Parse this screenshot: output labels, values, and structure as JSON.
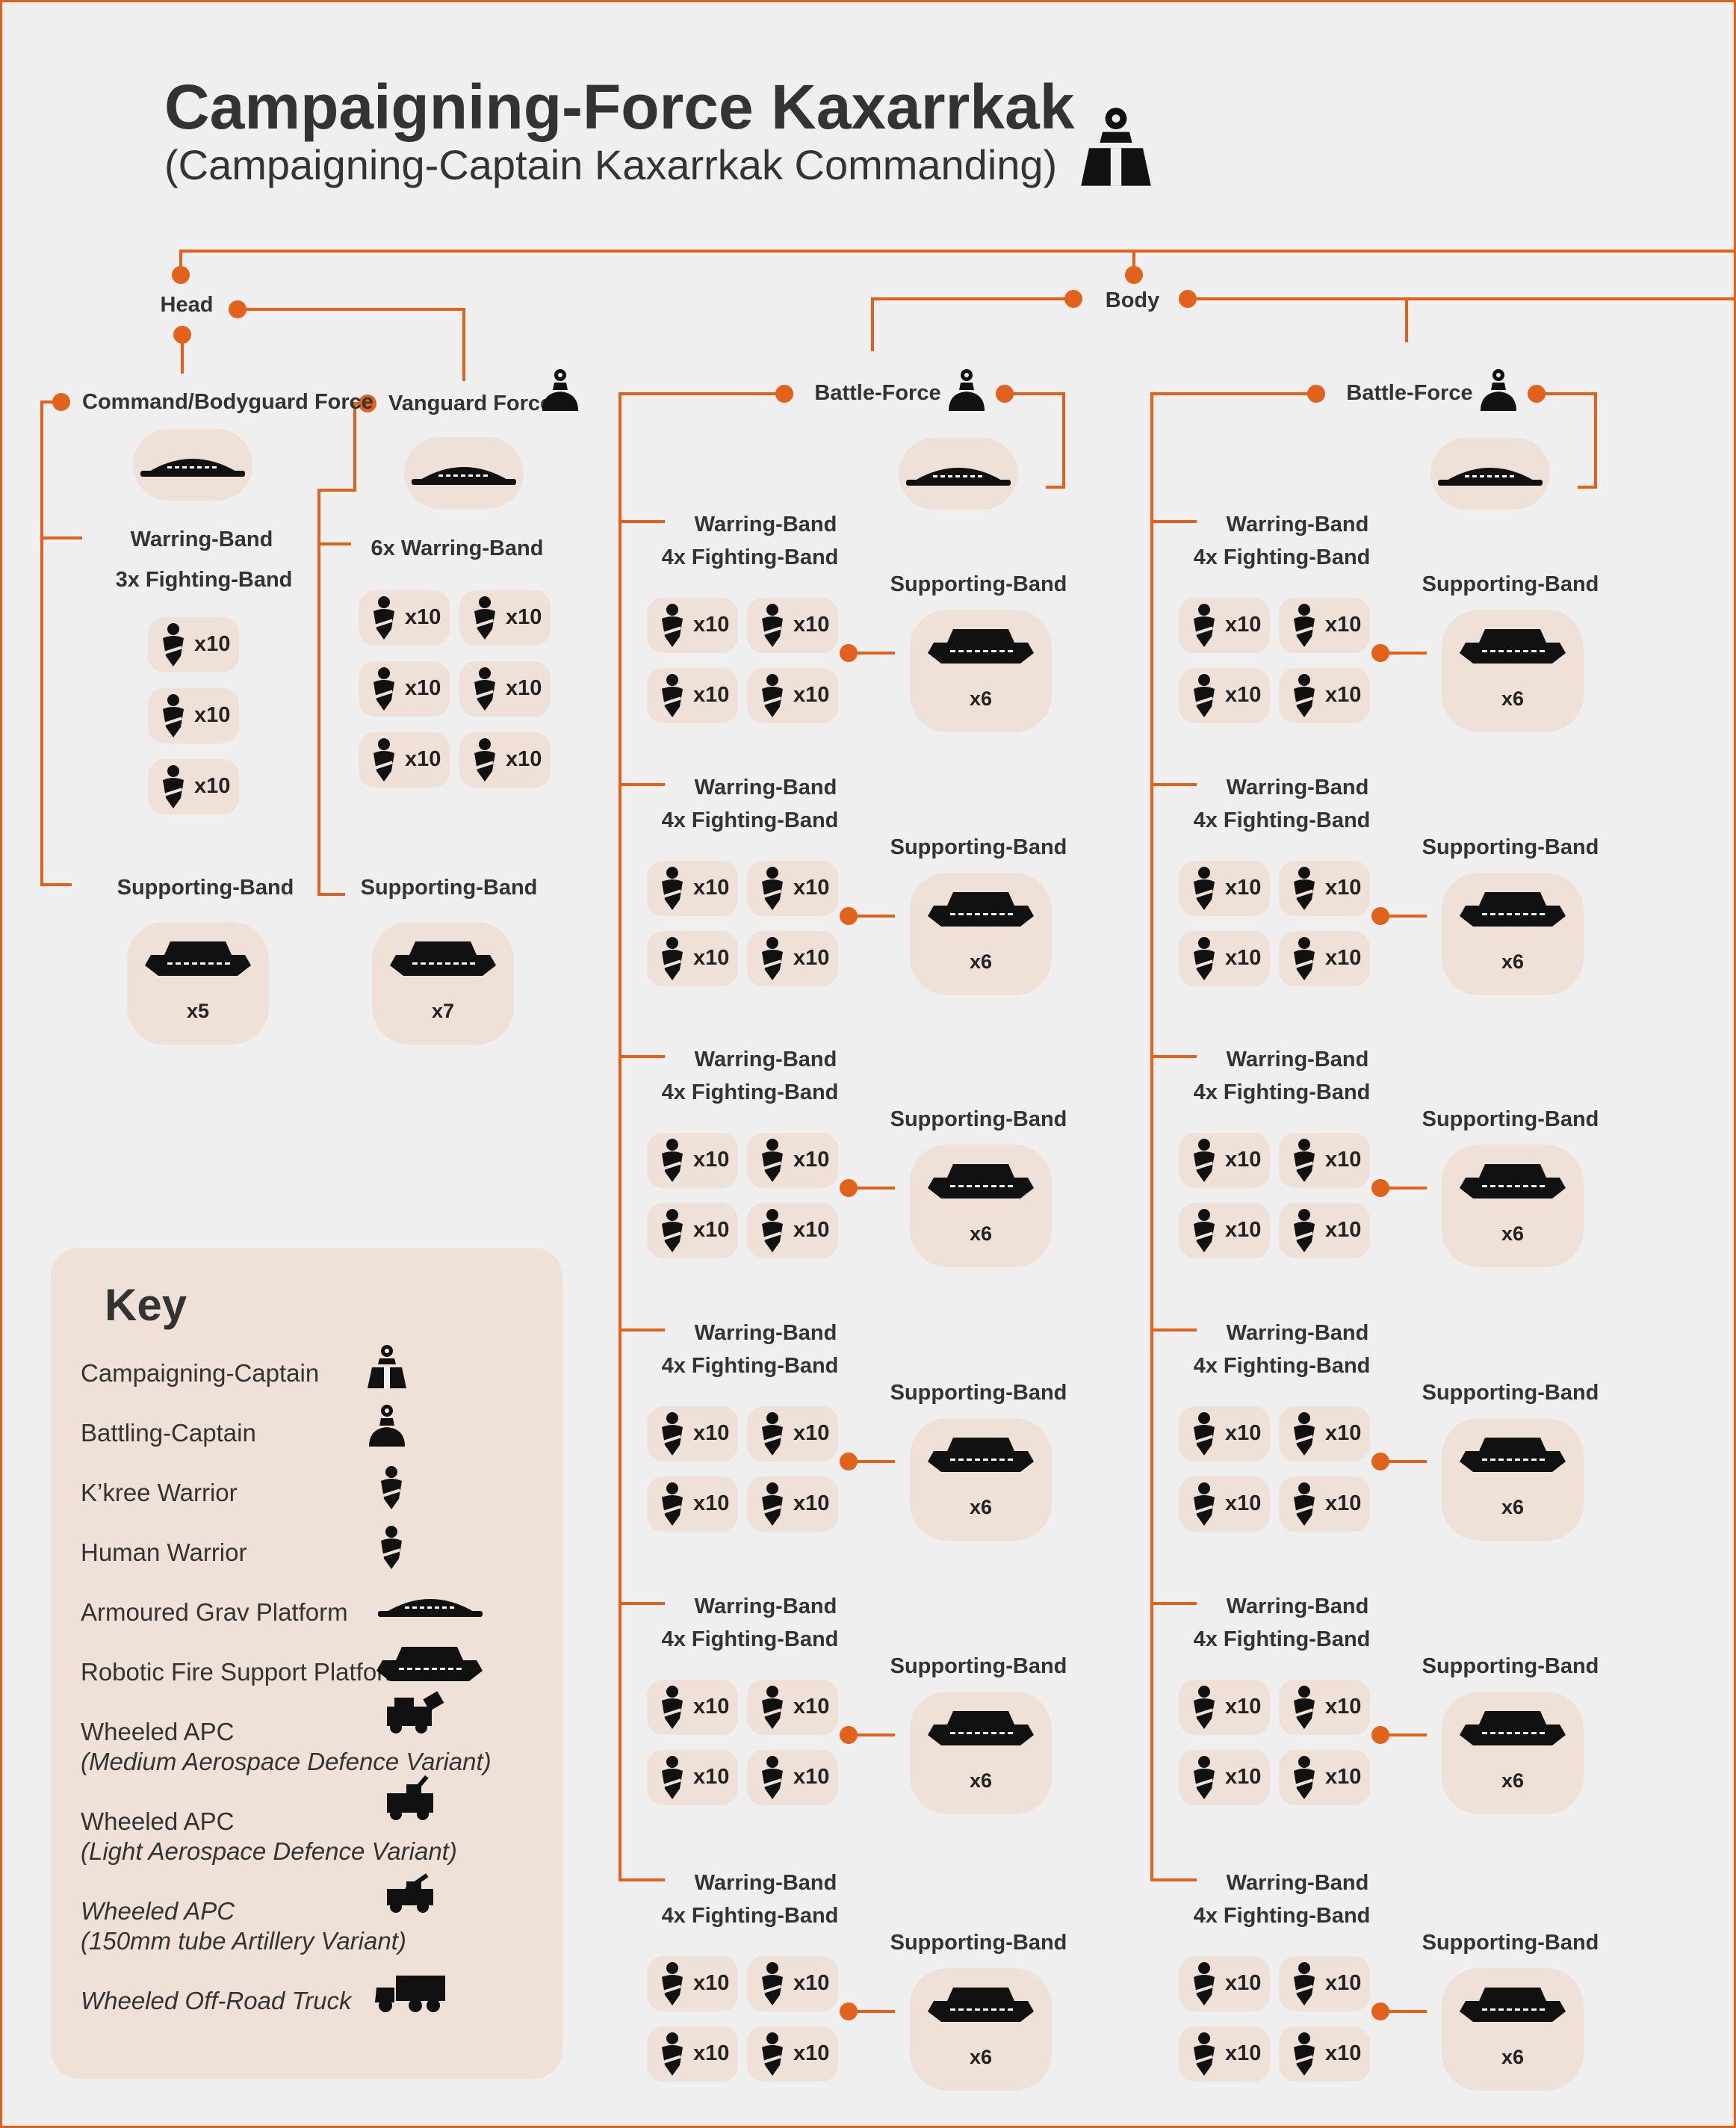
{
  "title": "Campaigning-Force Kaxarrkak",
  "subtitle": "(Campaigning-Captain Kaxarrkak Commanding)",
  "colors": {
    "accent": "#e2621b",
    "tile": "#efe1d8",
    "background": "#efefef",
    "icon": "#111111"
  },
  "head": {
    "label": "Head",
    "command": {
      "label": "Command/Bodyguard Force",
      "warring_band": "Warring-Band",
      "fighting_bands": "3x Fighting-Band",
      "fighting_counts": [
        "x10",
        "x10",
        "x10"
      ],
      "supporting_band": "Supporting-Band",
      "supporting_count": "x5"
    },
    "vanguard": {
      "label": "Vanguard Force",
      "warring_bands": "6x Warring-Band",
      "warring_counts": [
        "x10",
        "x10",
        "x10",
        "x10",
        "x10",
        "x10"
      ],
      "supporting_band": "Supporting-Band",
      "supporting_count": "x7"
    }
  },
  "body": {
    "label": "Body",
    "battle_forces": [
      {
        "label": "Battle-Force",
        "warring_bands": [
          {
            "label": "Warring-Band",
            "fighting": "4x Fighting-Band",
            "counts": [
              "x10",
              "x10",
              "x10",
              "x10"
            ],
            "supporting": "Supporting-Band",
            "supporting_count": "x6"
          },
          {
            "label": "Warring-Band",
            "fighting": "4x Fighting-Band",
            "counts": [
              "x10",
              "x10",
              "x10",
              "x10"
            ],
            "supporting": "Supporting-Band",
            "supporting_count": "x6"
          },
          {
            "label": "Warring-Band",
            "fighting": "4x Fighting-Band",
            "counts": [
              "x10",
              "x10",
              "x10",
              "x10"
            ],
            "supporting": "Supporting-Band",
            "supporting_count": "x6"
          },
          {
            "label": "Warring-Band",
            "fighting": "4x Fighting-Band",
            "counts": [
              "x10",
              "x10",
              "x10",
              "x10"
            ],
            "supporting": "Supporting-Band",
            "supporting_count": "x6"
          },
          {
            "label": "Warring-Band",
            "fighting": "4x Fighting-Band",
            "counts": [
              "x10",
              "x10",
              "x10",
              "x10"
            ],
            "supporting": "Supporting-Band",
            "supporting_count": "x6"
          },
          {
            "label": "Warring-Band",
            "fighting": "4x Fighting-Band",
            "counts": [
              "x10",
              "x10",
              "x10",
              "x10"
            ],
            "supporting": "Supporting-Band",
            "supporting_count": "x6"
          }
        ]
      },
      {
        "label": "Battle-Force",
        "warring_bands": [
          {
            "label": "Warring-Band",
            "fighting": "4x Fighting-Band",
            "counts": [
              "x10",
              "x10",
              "x10",
              "x10"
            ],
            "supporting": "Supporting-Band",
            "supporting_count": "x6"
          },
          {
            "label": "Warring-Band",
            "fighting": "4x Fighting-Band",
            "counts": [
              "x10",
              "x10",
              "x10",
              "x10"
            ],
            "supporting": "Supporting-Band",
            "supporting_count": "x6"
          },
          {
            "label": "Warring-Band",
            "fighting": "4x Fighting-Band",
            "counts": [
              "x10",
              "x10",
              "x10",
              "x10"
            ],
            "supporting": "Supporting-Band",
            "supporting_count": "x6"
          },
          {
            "label": "Warring-Band",
            "fighting": "4x Fighting-Band",
            "counts": [
              "x10",
              "x10",
              "x10",
              "x10"
            ],
            "supporting": "Supporting-Band",
            "supporting_count": "x6"
          },
          {
            "label": "Warring-Band",
            "fighting": "4x Fighting-Band",
            "counts": [
              "x10",
              "x10",
              "x10",
              "x10"
            ],
            "supporting": "Supporting-Band",
            "supporting_count": "x6"
          },
          {
            "label": "Warring-Band",
            "fighting": "4x Fighting-Band",
            "counts": [
              "x10",
              "x10",
              "x10",
              "x10"
            ],
            "supporting": "Supporting-Band",
            "supporting_count": "x6"
          }
        ]
      }
    ]
  },
  "key": {
    "title": "Key",
    "items": [
      {
        "label": "Campaigning-Captain",
        "icon": "campaigning-captain-icon"
      },
      {
        "label": "Battling-Captain",
        "icon": "battling-captain-icon"
      },
      {
        "label": "K’kree Warrior",
        "icon": "kkree-warrior-icon"
      },
      {
        "label": "Human Warrior",
        "icon": "human-warrior-icon"
      },
      {
        "label": "Armoured Grav Platform",
        "icon": "armoured-grav-platform-icon"
      },
      {
        "label": "Robotic Fire Support Platform",
        "icon": "robotic-fire-support-platform-icon"
      },
      {
        "label": "Wheeled APC",
        "sublabel": "(Medium Aerospace  Defence Variant)",
        "icon": "wheeled-apc-medium-ad-icon"
      },
      {
        "label": "Wheeled APC",
        "sublabel": "(Light Aerospace Defence Variant)",
        "icon": "wheeled-apc-light-ad-icon"
      },
      {
        "label": "Wheeled APC",
        "sublabel": "(150mm tube Artillery Variant)",
        "icon": "wheeled-apc-artillery-icon"
      },
      {
        "label": "Wheeled Off-Road Truck",
        "icon": "wheeled-off-road-truck-icon"
      }
    ]
  }
}
